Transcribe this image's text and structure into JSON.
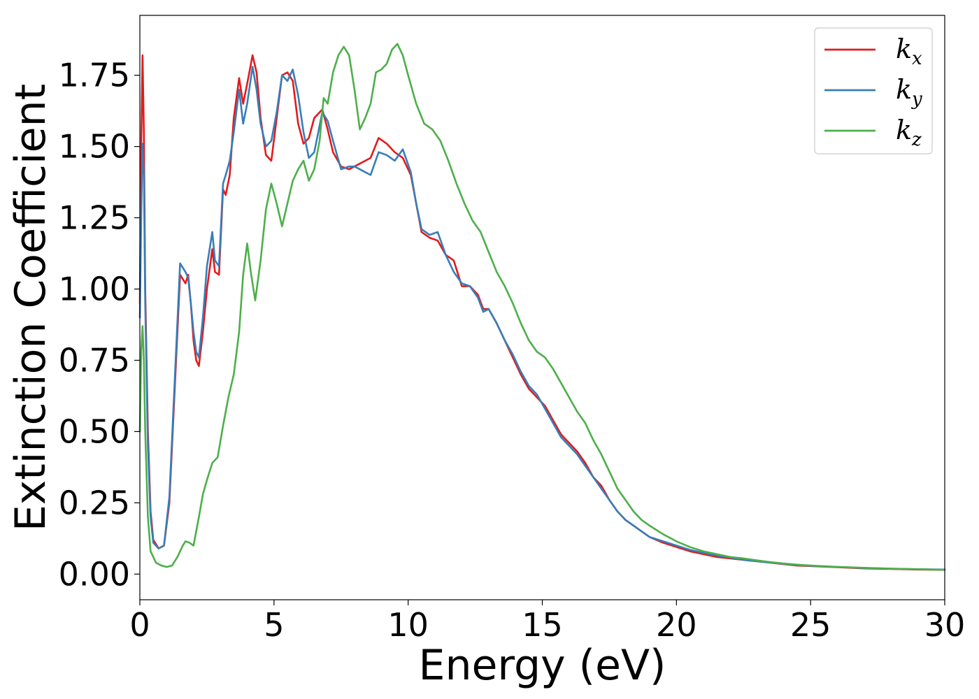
{
  "chart_data": {
    "type": "line",
    "xlabel": "Energy (eV)",
    "ylabel": "Extinction Coefficient",
    "xlim": [
      0,
      30
    ],
    "ylim": [
      -0.09,
      1.96
    ],
    "xticks": [
      0,
      5,
      10,
      15,
      20,
      25,
      30
    ],
    "xtick_labels": [
      "0",
      "5",
      "10",
      "15",
      "20",
      "25",
      "30"
    ],
    "yticks": [
      0.0,
      0.25,
      0.5,
      0.75,
      1.0,
      1.25,
      1.5,
      1.75
    ],
    "ytick_labels": [
      "0.00",
      "0.25",
      "0.50",
      "0.75",
      "1.00",
      "1.25",
      "1.50",
      "1.75"
    ],
    "grid": false,
    "legend_position": "top-right",
    "series": [
      {
        "name": "k_x",
        "legend_base": "k",
        "legend_sub": "x",
        "color": "#e41a1c",
        "x": [
          0.0,
          0.05,
          0.1,
          0.15,
          0.2,
          0.3,
          0.4,
          0.5,
          0.7,
          0.9,
          1.1,
          1.3,
          1.5,
          1.7,
          1.8,
          1.9,
          2.0,
          2.1,
          2.2,
          2.35,
          2.5,
          2.7,
          2.8,
          2.95,
          3.1,
          3.2,
          3.35,
          3.5,
          3.7,
          3.85,
          4.0,
          4.2,
          4.35,
          4.5,
          4.7,
          4.9,
          5.1,
          5.3,
          5.5,
          5.7,
          5.9,
          6.1,
          6.3,
          6.5,
          6.8,
          7.0,
          7.2,
          7.5,
          7.8,
          8.0,
          8.2,
          8.4,
          8.6,
          8.9,
          9.2,
          9.5,
          9.8,
          10.1,
          10.3,
          10.5,
          10.8,
          11.1,
          11.4,
          11.7,
          12.0,
          12.3,
          12.6,
          12.8,
          13.0,
          13.3,
          13.6,
          13.9,
          14.2,
          14.5,
          14.8,
          15.1,
          15.4,
          15.7,
          16.0,
          16.3,
          16.6,
          16.9,
          17.2,
          17.5,
          17.8,
          18.1,
          18.4,
          18.7,
          19.0,
          19.5,
          20.0,
          20.5,
          21.0,
          21.5,
          22.0,
          22.5,
          23.0,
          23.5,
          24.0,
          24.5,
          25.0,
          26.0,
          27.0,
          28.0,
          29.0,
          30.0
        ],
        "y": [
          0.95,
          1.5,
          1.82,
          1.55,
          1.0,
          0.5,
          0.22,
          0.12,
          0.09,
          0.1,
          0.25,
          0.65,
          1.05,
          1.02,
          1.05,
          0.95,
          0.82,
          0.75,
          0.73,
          0.85,
          1.0,
          1.14,
          1.06,
          1.05,
          1.35,
          1.33,
          1.4,
          1.6,
          1.74,
          1.65,
          1.72,
          1.82,
          1.76,
          1.6,
          1.47,
          1.45,
          1.6,
          1.75,
          1.76,
          1.73,
          1.58,
          1.51,
          1.53,
          1.6,
          1.63,
          1.56,
          1.48,
          1.43,
          1.42,
          1.43,
          1.44,
          1.45,
          1.46,
          1.53,
          1.51,
          1.48,
          1.46,
          1.4,
          1.3,
          1.2,
          1.18,
          1.17,
          1.12,
          1.1,
          1.01,
          1.01,
          0.98,
          0.93,
          0.93,
          0.88,
          0.82,
          0.76,
          0.7,
          0.65,
          0.62,
          0.59,
          0.54,
          0.49,
          0.46,
          0.43,
          0.39,
          0.34,
          0.31,
          0.26,
          0.22,
          0.19,
          0.17,
          0.15,
          0.13,
          0.11,
          0.095,
          0.08,
          0.07,
          0.06,
          0.055,
          0.05,
          0.045,
          0.04,
          0.035,
          0.03,
          0.028,
          0.024,
          0.02,
          0.018,
          0.016,
          0.015
        ]
      },
      {
        "name": "k_y",
        "legend_base": "k",
        "legend_sub": "y",
        "color": "#377eb8",
        "x": [
          0.0,
          0.05,
          0.1,
          0.15,
          0.2,
          0.3,
          0.4,
          0.5,
          0.7,
          0.9,
          1.1,
          1.3,
          1.5,
          1.7,
          1.8,
          1.9,
          2.0,
          2.1,
          2.2,
          2.35,
          2.5,
          2.7,
          2.8,
          2.95,
          3.1,
          3.2,
          3.35,
          3.5,
          3.7,
          3.85,
          4.0,
          4.2,
          4.35,
          4.5,
          4.7,
          4.9,
          5.1,
          5.3,
          5.5,
          5.7,
          5.9,
          6.1,
          6.3,
          6.5,
          6.8,
          7.0,
          7.2,
          7.5,
          7.8,
          8.0,
          8.2,
          8.4,
          8.6,
          8.9,
          9.2,
          9.5,
          9.8,
          10.1,
          10.3,
          10.5,
          10.8,
          11.1,
          11.4,
          11.7,
          12.0,
          12.3,
          12.6,
          12.8,
          13.0,
          13.3,
          13.6,
          13.9,
          14.2,
          14.5,
          14.8,
          15.1,
          15.4,
          15.7,
          16.0,
          16.3,
          16.6,
          16.9,
          17.2,
          17.5,
          17.8,
          18.1,
          18.4,
          18.7,
          19.0,
          19.5,
          20.0,
          20.5,
          21.0,
          21.5,
          22.0,
          22.5,
          23.0,
          23.5,
          24.0,
          24.5,
          25.0,
          26.0,
          27.0,
          28.0,
          29.0,
          30.0
        ],
        "y": [
          0.9,
          1.25,
          1.51,
          1.4,
          0.95,
          0.45,
          0.2,
          0.11,
          0.09,
          0.1,
          0.27,
          0.68,
          1.09,
          1.06,
          1.04,
          0.95,
          0.85,
          0.78,
          0.76,
          0.9,
          1.08,
          1.2,
          1.1,
          1.08,
          1.37,
          1.4,
          1.45,
          1.55,
          1.7,
          1.58,
          1.65,
          1.78,
          1.7,
          1.58,
          1.5,
          1.52,
          1.62,
          1.75,
          1.73,
          1.77,
          1.68,
          1.55,
          1.46,
          1.48,
          1.62,
          1.59,
          1.52,
          1.42,
          1.43,
          1.43,
          1.42,
          1.41,
          1.4,
          1.48,
          1.47,
          1.45,
          1.49,
          1.41,
          1.3,
          1.21,
          1.19,
          1.2,
          1.12,
          1.06,
          1.02,
          1.01,
          0.97,
          0.92,
          0.93,
          0.88,
          0.82,
          0.77,
          0.71,
          0.66,
          0.63,
          0.58,
          0.53,
          0.48,
          0.45,
          0.42,
          0.38,
          0.34,
          0.3,
          0.26,
          0.22,
          0.19,
          0.17,
          0.15,
          0.13,
          0.115,
          0.1,
          0.085,
          0.075,
          0.065,
          0.058,
          0.05,
          0.045,
          0.04,
          0.036,
          0.032,
          0.029,
          0.025,
          0.021,
          0.019,
          0.017,
          0.016
        ]
      },
      {
        "name": "k_z",
        "legend_base": "k",
        "legend_sub": "z",
        "color": "#4daf4a",
        "x": [
          0.0,
          0.05,
          0.1,
          0.15,
          0.2,
          0.3,
          0.4,
          0.6,
          0.8,
          1.0,
          1.2,
          1.4,
          1.6,
          1.7,
          1.85,
          2.0,
          2.2,
          2.35,
          2.5,
          2.7,
          2.9,
          3.1,
          3.3,
          3.5,
          3.7,
          3.85,
          4.0,
          4.15,
          4.3,
          4.5,
          4.7,
          4.9,
          5.1,
          5.3,
          5.5,
          5.7,
          5.9,
          6.1,
          6.3,
          6.5,
          6.7,
          6.85,
          7.0,
          7.2,
          7.4,
          7.6,
          7.8,
          8.0,
          8.2,
          8.4,
          8.6,
          8.8,
          9.0,
          9.2,
          9.4,
          9.6,
          9.8,
          10.0,
          10.3,
          10.6,
          10.9,
          11.2,
          11.5,
          11.8,
          12.1,
          12.4,
          12.7,
          13.0,
          13.3,
          13.6,
          13.9,
          14.2,
          14.5,
          14.8,
          15.1,
          15.4,
          15.7,
          16.0,
          16.3,
          16.6,
          16.9,
          17.2,
          17.5,
          17.8,
          18.1,
          18.4,
          18.7,
          19.0,
          19.5,
          20.0,
          20.5,
          21.0,
          21.5,
          22.0,
          22.5,
          23.0,
          23.5,
          24.0,
          24.5,
          25.0,
          26.0,
          27.0,
          28.0,
          29.0,
          30.0
        ],
        "y": [
          0.5,
          0.78,
          0.87,
          0.75,
          0.5,
          0.2,
          0.08,
          0.04,
          0.03,
          0.025,
          0.03,
          0.06,
          0.1,
          0.115,
          0.11,
          0.1,
          0.2,
          0.28,
          0.33,
          0.39,
          0.41,
          0.52,
          0.62,
          0.7,
          0.85,
          1.05,
          1.16,
          1.05,
          0.96,
          1.1,
          1.28,
          1.37,
          1.3,
          1.22,
          1.3,
          1.38,
          1.42,
          1.45,
          1.38,
          1.42,
          1.52,
          1.67,
          1.65,
          1.76,
          1.82,
          1.85,
          1.82,
          1.7,
          1.56,
          1.6,
          1.65,
          1.76,
          1.77,
          1.79,
          1.84,
          1.86,
          1.82,
          1.75,
          1.65,
          1.58,
          1.56,
          1.52,
          1.45,
          1.37,
          1.3,
          1.24,
          1.2,
          1.13,
          1.06,
          1.01,
          0.95,
          0.88,
          0.82,
          0.78,
          0.76,
          0.72,
          0.67,
          0.62,
          0.57,
          0.53,
          0.47,
          0.42,
          0.36,
          0.3,
          0.26,
          0.22,
          0.19,
          0.17,
          0.14,
          0.115,
          0.095,
          0.08,
          0.07,
          0.06,
          0.055,
          0.048,
          0.042,
          0.037,
          0.033,
          0.03,
          0.025,
          0.022,
          0.019,
          0.017,
          0.015
        ]
      }
    ]
  }
}
